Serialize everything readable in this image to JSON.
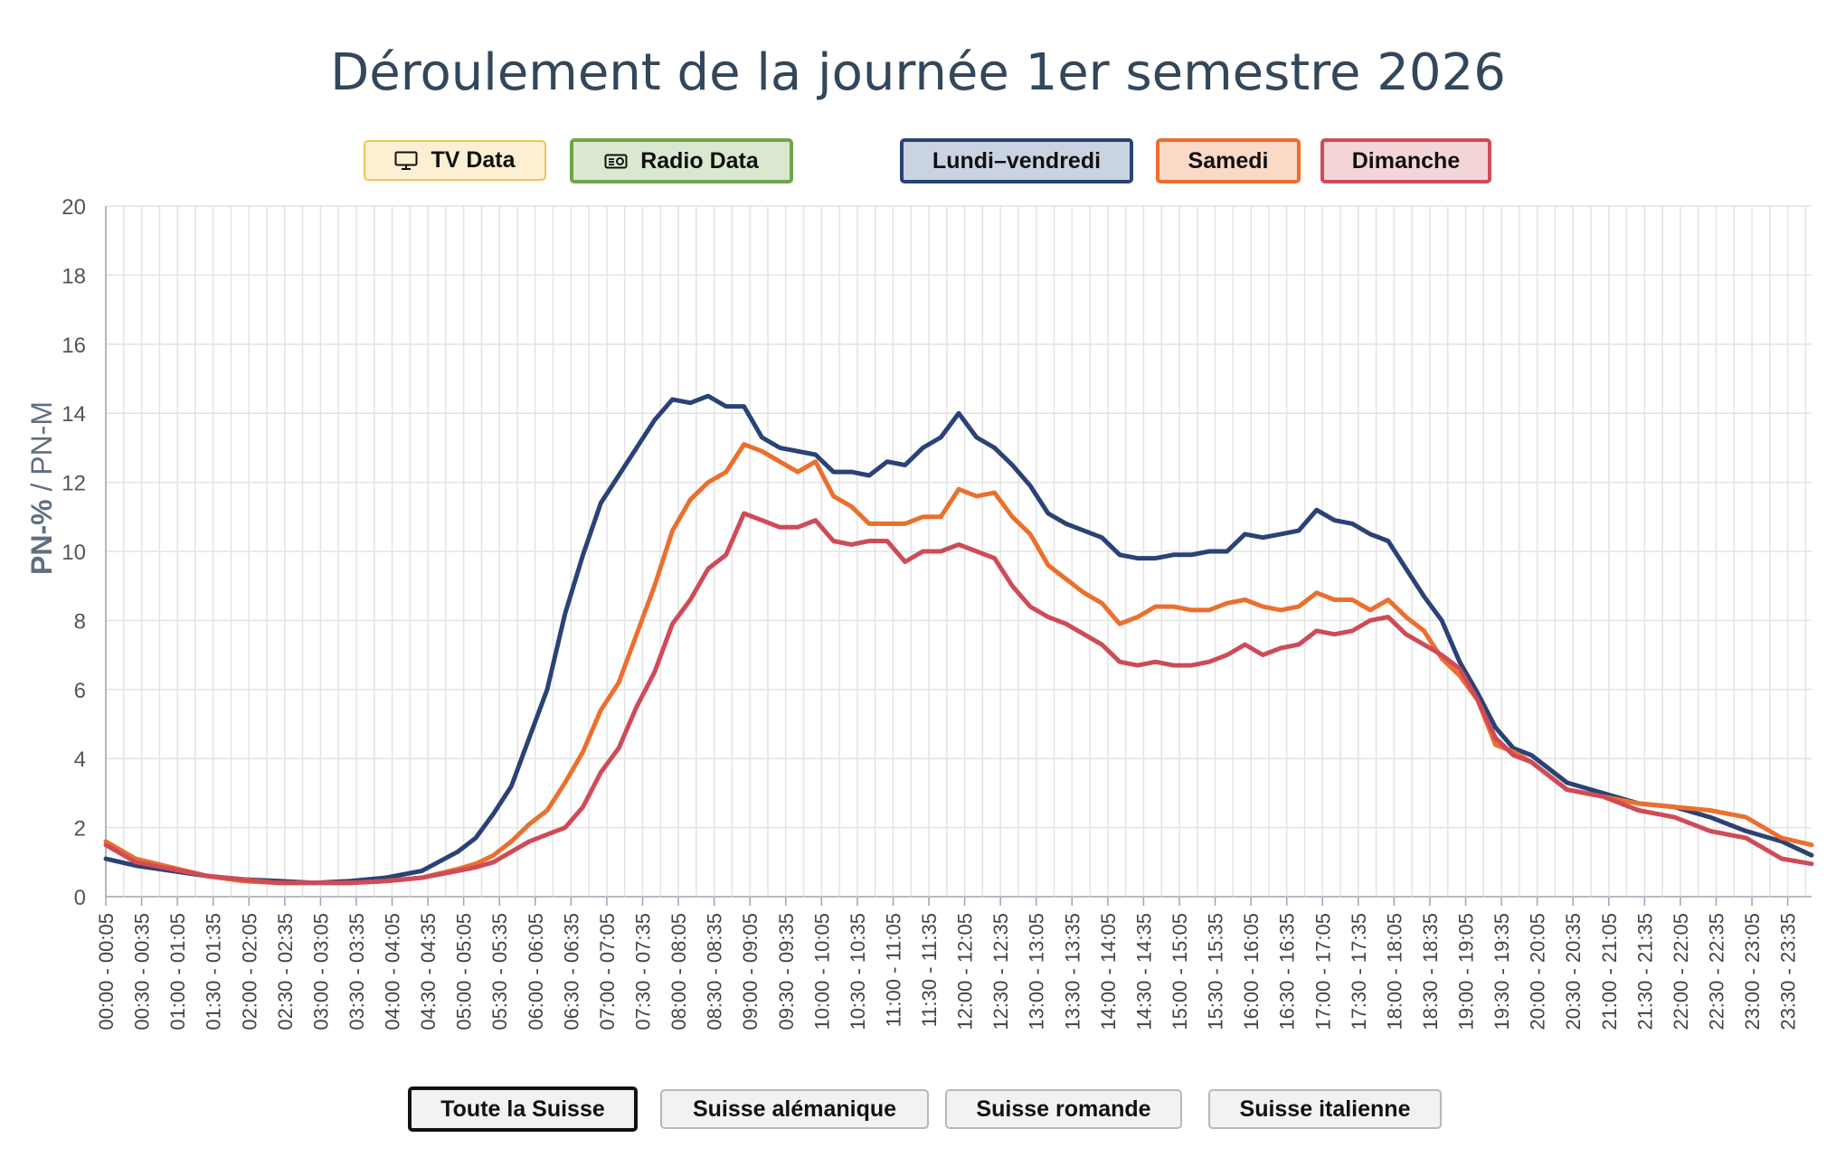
{
  "title": "Déroulement de la journée 1er semestre 2026",
  "media_buttons": [
    {
      "label": "TV Data",
      "icon": "tv-icon"
    },
    {
      "label": "Radio Data",
      "icon": "radio-icon"
    }
  ],
  "day_buttons": [
    {
      "label": "Lundi–vendredi",
      "color": "#2a4275"
    },
    {
      "label": "Samedi",
      "color": "#ec6f2d"
    },
    {
      "label": "Dimanche",
      "color": "#ce4b57"
    }
  ],
  "region_buttons": [
    "Toute la Suisse",
    "Suisse alémanique",
    "Suisse romande",
    "Suisse italienne"
  ],
  "chart_data": {
    "type": "line",
    "title": "Déroulement de la journée 1er semestre 2026",
    "ylabel_bold": "PN-%",
    "ylabel_rest": " / PN-M",
    "ylim": [
      0,
      20
    ],
    "yticks": [
      0,
      2,
      4,
      6,
      8,
      10,
      12,
      14,
      16,
      18,
      20
    ],
    "grid": true,
    "xtick_labels": [
      "00:00 - 00:05",
      "00:30 - 00:35",
      "01:00 - 01:05",
      "01:30 - 01:35",
      "02:00 - 02:05",
      "02:30 - 02:35",
      "03:00 - 03:05",
      "03:30 - 03:35",
      "04:00 - 04:05",
      "04:30 - 04:35",
      "05:00 - 05:05",
      "05:30 - 05:35",
      "06:00 - 06:05",
      "06:30 - 06:35",
      "07:00 - 07:05",
      "07:30 - 07:35",
      "08:00 - 08:05",
      "08:30 - 08:35",
      "09:00 - 09:05",
      "09:30 - 09:35",
      "10:00 - 10:05",
      "10:30 - 10:35",
      "11:00 - 11:05",
      "11:30 - 11:35",
      "12:00 - 12:05",
      "12:30 - 12:35",
      "13:00 - 13:05",
      "13:30 - 13:35",
      "14:00 - 14:05",
      "14:30 - 14:35",
      "15:00 - 15:05",
      "15:30 - 15:35",
      "16:00 - 16:05",
      "16:30 - 16:35",
      "17:00 - 17:05",
      "17:30 - 17:35",
      "18:00 - 18:05",
      "18:30 - 18:35",
      "19:00 - 19:05",
      "19:30 - 19:35",
      "20:00 - 20:05",
      "20:30 - 20:35",
      "21:00 - 21:05",
      "21:30 - 21:35",
      "22:00 - 22:05",
      "22:30 - 22:35",
      "23:00 - 23:05",
      "23:30 - 23:35"
    ],
    "x": [
      "00:00",
      "00:30",
      "01:00",
      "01:30",
      "02:00",
      "02:30",
      "03:00",
      "03:30",
      "04:00",
      "04:30",
      "05:00",
      "05:15",
      "05:30",
      "05:45",
      "06:00",
      "06:15",
      "06:30",
      "06:45",
      "07:00",
      "07:15",
      "07:30",
      "07:45",
      "08:00",
      "08:15",
      "08:30",
      "08:45",
      "09:00",
      "09:15",
      "09:30",
      "09:45",
      "10:00",
      "10:15",
      "10:30",
      "10:45",
      "11:00",
      "11:15",
      "11:30",
      "11:45",
      "12:00",
      "12:15",
      "12:30",
      "12:45",
      "13:00",
      "13:15",
      "13:30",
      "13:45",
      "14:00",
      "14:15",
      "14:30",
      "14:45",
      "15:00",
      "15:15",
      "15:30",
      "15:45",
      "16:00",
      "16:15",
      "16:30",
      "16:45",
      "17:00",
      "17:15",
      "17:30",
      "17:45",
      "18:00",
      "18:15",
      "18:30",
      "18:45",
      "19:00",
      "19:15",
      "19:30",
      "19:45",
      "20:00",
      "20:30",
      "21:00",
      "21:30",
      "22:00",
      "22:30",
      "23:00",
      "23:30",
      "23:55"
    ],
    "series": [
      {
        "name": "Lundi–vendredi",
        "color": "#2a4275",
        "values": [
          1.1,
          0.9,
          0.75,
          0.6,
          0.5,
          0.45,
          0.4,
          0.45,
          0.55,
          0.75,
          1.3,
          1.7,
          2.4,
          3.2,
          4.6,
          6.0,
          8.2,
          9.9,
          11.4,
          12.2,
          13.0,
          13.8,
          14.4,
          14.3,
          14.5,
          14.2,
          14.2,
          13.3,
          13.0,
          12.9,
          12.8,
          12.3,
          12.3,
          12.2,
          12.6,
          12.5,
          13.0,
          13.3,
          14.0,
          13.3,
          13.0,
          12.5,
          11.9,
          11.1,
          10.8,
          10.6,
          10.4,
          9.9,
          9.8,
          9.8,
          9.9,
          9.9,
          10.0,
          10.0,
          10.5,
          10.4,
          10.5,
          10.6,
          11.2,
          10.9,
          10.8,
          10.5,
          10.3,
          9.5,
          8.7,
          8.0,
          6.8,
          5.9,
          4.9,
          4.3,
          4.1,
          3.3,
          3.0,
          2.7,
          2.6,
          2.3,
          1.9,
          1.6,
          1.2
        ]
      },
      {
        "name": "Samedi",
        "color": "#ec6f2d",
        "values": [
          1.6,
          1.1,
          0.85,
          0.6,
          0.45,
          0.4,
          0.4,
          0.4,
          0.45,
          0.55,
          0.8,
          0.95,
          1.2,
          1.6,
          2.1,
          2.5,
          3.3,
          4.2,
          5.4,
          6.2,
          7.6,
          9.0,
          10.6,
          11.5,
          12.0,
          12.3,
          13.1,
          12.9,
          12.6,
          12.3,
          12.6,
          11.6,
          11.3,
          10.8,
          10.8,
          10.8,
          11.0,
          11.0,
          11.8,
          11.6,
          11.7,
          11.0,
          10.5,
          9.6,
          9.2,
          8.8,
          8.5,
          7.9,
          8.1,
          8.4,
          8.4,
          8.3,
          8.3,
          8.5,
          8.6,
          8.4,
          8.3,
          8.4,
          8.8,
          8.6,
          8.6,
          8.3,
          8.6,
          8.1,
          7.7,
          6.9,
          6.4,
          5.7,
          4.4,
          4.2,
          3.9,
          3.1,
          2.9,
          2.7,
          2.6,
          2.5,
          2.3,
          1.7,
          1.5
        ]
      },
      {
        "name": "Dimanche",
        "color": "#ce4b57",
        "values": [
          1.5,
          1.0,
          0.8,
          0.6,
          0.5,
          0.4,
          0.4,
          0.4,
          0.45,
          0.55,
          0.75,
          0.85,
          1.0,
          1.3,
          1.6,
          1.8,
          2.0,
          2.6,
          3.6,
          4.3,
          5.5,
          6.5,
          7.9,
          8.6,
          9.5,
          9.9,
          11.1,
          10.9,
          10.7,
          10.7,
          10.9,
          10.3,
          10.2,
          10.3,
          10.3,
          9.7,
          10.0,
          10.0,
          10.2,
          10.0,
          9.8,
          9.0,
          8.4,
          8.1,
          7.9,
          7.6,
          7.3,
          6.8,
          6.7,
          6.8,
          6.7,
          6.7,
          6.8,
          7.0,
          7.3,
          7.0,
          7.2,
          7.3,
          7.7,
          7.6,
          7.7,
          8.0,
          8.1,
          7.6,
          7.3,
          7.0,
          6.6,
          5.7,
          4.6,
          4.1,
          3.9,
          3.1,
          2.9,
          2.5,
          2.3,
          1.9,
          1.7,
          1.1,
          0.95
        ]
      }
    ]
  }
}
